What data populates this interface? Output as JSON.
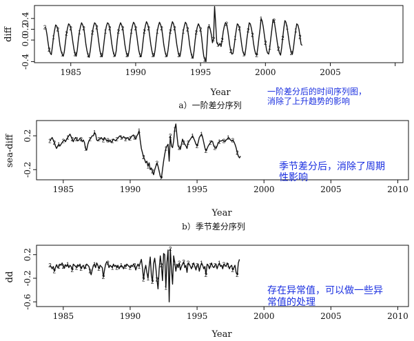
{
  "chart_data": [
    {
      "type": "line",
      "title": "",
      "xlabel": "Year",
      "ylabel": "diff",
      "caption": "a）一阶差分序列",
      "annotation": "一阶差分后的时间序列图，消除了上升趋势的影响",
      "annotation_lines": [
        "一阶差分后的时间序列图，",
        "消除了上升趋势的影响"
      ],
      "xlim": [
        1982.2,
        2010.6
      ],
      "ylim": [
        -0.42,
        0.64
      ],
      "xticks": [
        1985,
        1990,
        1995,
        2000,
        2005,
        2010
      ],
      "xtick_labels": [
        "1985",
        "1990",
        "1995",
        "2000",
        "2005",
        ""
      ],
      "yticks": [
        -0.4,
        0.0,
        0.2,
        0.4
      ],
      "ytick_labels": [
        "-0.4",
        "0.0",
        "0.2",
        "0.4"
      ],
      "start": 1983.0,
      "step": 0.08333,
      "labels_every": 4,
      "grid": false,
      "values": [
        0.24,
        0.22,
        0.1,
        -0.05,
        -0.18,
        -0.24,
        -0.27,
        -0.12,
        0.05,
        0.18,
        0.28,
        0.26,
        0.2,
        0.06,
        -0.1,
        -0.2,
        -0.26,
        -0.3,
        -0.22,
        -0.05,
        0.12,
        0.22,
        0.3,
        0.28,
        0.22,
        0.1,
        -0.05,
        -0.18,
        -0.26,
        -0.3,
        -0.18,
        0.0,
        0.15,
        0.25,
        0.32,
        0.28,
        0.22,
        0.08,
        -0.08,
        -0.2,
        -0.28,
        -0.32,
        -0.2,
        -0.02,
        0.14,
        0.25,
        0.32,
        0.3,
        0.24,
        0.1,
        -0.06,
        -0.2,
        -0.28,
        -0.31,
        -0.18,
        0.0,
        0.16,
        0.26,
        0.32,
        0.3,
        0.22,
        0.08,
        -0.08,
        -0.2,
        -0.27,
        -0.3,
        -0.2,
        0.0,
        0.16,
        0.26,
        0.32,
        0.28,
        0.22,
        0.08,
        -0.08,
        -0.2,
        -0.28,
        -0.3,
        -0.19,
        0.0,
        0.16,
        0.26,
        0.33,
        0.3,
        0.22,
        0.09,
        -0.07,
        -0.2,
        -0.28,
        -0.31,
        -0.19,
        0.0,
        0.16,
        0.27,
        0.34,
        0.3,
        0.22,
        0.08,
        -0.08,
        -0.2,
        -0.28,
        -0.3,
        -0.18,
        0.0,
        0.16,
        0.26,
        0.33,
        0.29,
        0.22,
        0.08,
        -0.08,
        -0.2,
        -0.28,
        -0.3,
        -0.18,
        0.0,
        0.16,
        0.26,
        0.34,
        0.3,
        0.22,
        0.08,
        -0.08,
        -0.2,
        -0.28,
        -0.3,
        -0.18,
        0.0,
        0.16,
        0.26,
        0.33,
        0.3,
        0.2,
        0.06,
        -0.1,
        -0.22,
        -0.3,
        -0.34,
        -0.2,
        0.0,
        0.14,
        0.24,
        0.3,
        0.26,
        0.2,
        0.05,
        -0.15,
        -0.3,
        -0.36,
        -0.4,
        -0.1,
        0.24,
        0.26,
        0.2,
        0.1,
        -0.05,
        0.02,
        0.62,
        0.3,
        -0.05,
        -0.08,
        -0.1,
        -0.06,
        -0.12,
        0.0,
        0.16,
        0.26,
        0.32,
        0.3,
        0.2,
        0.06,
        -0.1,
        -0.2,
        -0.26,
        -0.25,
        -0.12,
        0.04,
        0.18,
        0.3,
        0.28,
        0.22,
        0.08,
        -0.08,
        -0.2,
        -0.26,
        -0.28,
        -0.14,
        0.04,
        0.18,
        0.32,
        0.3,
        0.22,
        0.1,
        -0.06,
        -0.18,
        -0.26,
        -0.28,
        -0.14,
        0.04,
        0.2,
        0.4,
        0.35,
        0.24,
        0.1,
        -0.05,
        -0.18,
        -0.24,
        -0.26,
        -0.14,
        0.04,
        0.2,
        0.38,
        0.36,
        0.24,
        0.1,
        -0.05,
        -0.16,
        -0.24,
        -0.28,
        -0.14,
        0.04,
        0.22,
        0.36,
        0.33,
        0.24,
        0.1,
        -0.04,
        -0.16,
        -0.24,
        -0.26,
        -0.14,
        0.04,
        0.18,
        0.3,
        0.28,
        0.2,
        0.06,
        -0.08,
        -0.1
      ]
    },
    {
      "type": "line",
      "title": "",
      "xlabel": "Year",
      "ylabel": "sea-diff",
      "caption": "b）季节差分序列",
      "annotation": "季节差分后，消除了周期性影响",
      "annotation_lines": [
        "季节差分后，消除了周期",
        "性影响"
      ],
      "xlim": [
        1983.0,
        2010.8
      ],
      "ylim": [
        -0.32,
        0.38
      ],
      "xticks": [
        1985,
        1990,
        1995,
        2000,
        2005,
        2010
      ],
      "xtick_labels": [
        "1985",
        "1990",
        "1995",
        "2000",
        "2005",
        "2010"
      ],
      "yticks": [
        -0.2,
        0.2
      ],
      "ytick_labels": [
        "-0.2",
        "0.2"
      ],
      "start": 1984.0,
      "step": 0.08333,
      "labels_every": 4,
      "grid": false,
      "values": [
        0.14,
        0.16,
        0.18,
        0.15,
        0.12,
        0.08,
        0.05,
        0.08,
        0.1,
        0.08,
        0.1,
        0.12,
        0.14,
        0.15,
        0.13,
        0.16,
        0.18,
        0.2,
        0.22,
        0.19,
        0.16,
        0.13,
        0.16,
        0.18,
        0.16,
        0.14,
        0.15,
        0.17,
        0.16,
        0.13,
        0.15,
        0.12,
        0.05,
        0.03,
        0.1,
        0.14,
        0.16,
        0.18,
        0.2,
        0.2,
        0.24,
        0.22,
        0.15,
        0.14,
        0.16,
        0.16,
        0.18,
        0.16,
        0.15,
        0.18,
        0.16,
        0.14,
        0.15,
        0.13,
        0.15,
        0.12,
        0.14,
        0.16,
        0.15,
        0.14,
        0.16,
        0.17,
        0.19,
        0.2,
        0.18,
        0.17,
        0.19,
        0.18,
        0.16,
        0.17,
        0.18,
        0.15,
        0.17,
        0.19,
        0.2,
        0.21,
        0.18,
        0.16,
        0.2,
        0.22,
        0.26,
        0.15,
        0.05,
        0.0,
        -0.05,
        -0.08,
        -0.12,
        -0.1,
        -0.16,
        -0.12,
        -0.2,
        -0.18,
        -0.22,
        -0.26,
        -0.2,
        -0.16,
        -0.12,
        -0.16,
        -0.22,
        -0.28,
        -0.3,
        -0.2,
        -0.1,
        -0.02,
        0.05,
        0.08,
        0.1,
        -0.1,
        0.2,
        0.08,
        0.06,
        0.14,
        0.28,
        0.34,
        0.2,
        0.08,
        0.06,
        0.04,
        0.1,
        0.16,
        0.12,
        0.1,
        0.08,
        0.05,
        0.12,
        0.14,
        0.16,
        0.18,
        0.2,
        0.17,
        0.14,
        0.1,
        0.08,
        0.12,
        0.18,
        0.2,
        0.22,
        0.18,
        0.12,
        0.06,
        0.02,
        0.05,
        0.08,
        0.1,
        0.12,
        0.14,
        0.13,
        0.08,
        0.06,
        0.05,
        0.08,
        0.12,
        0.13,
        0.14,
        0.14,
        0.15,
        0.14,
        0.13,
        0.15,
        0.16,
        0.18,
        0.17,
        0.15,
        0.14,
        0.15,
        0.13,
        0.1,
        0.06,
        0.0,
        -0.04,
        -0.06,
        -0.04
      ]
    },
    {
      "type": "line",
      "title": "",
      "xlabel": "Year",
      "ylabel": "dd",
      "caption": "",
      "annotation": "存在异常值，可以做一些异常值的处理",
      "annotation_lines": [
        "存在异常值，可以做一些异",
        "常值的处理"
      ],
      "xlim": [
        1983.0,
        2010.8
      ],
      "ylim": [
        -0.68,
        0.36
      ],
      "xticks": [
        1985,
        1990,
        1995,
        2000,
        2005,
        2010
      ],
      "xtick_labels": [
        "1985",
        "1990",
        "1995",
        "2000",
        "2005",
        "2010"
      ],
      "yticks": [
        -0.6,
        -0.2,
        0.2
      ],
      "ytick_labels": [
        "-0.6",
        "-0.2",
        "0.2"
      ],
      "start": 1984.0,
      "step": 0.08333,
      "labels_every": 4,
      "grid": false,
      "values": [
        0.02,
        0.0,
        -0.04,
        0.0,
        -0.08,
        -0.02,
        0.03,
        -0.02,
        0.0,
        0.04,
        0.02,
        0.06,
        0.0,
        -0.03,
        0.03,
        0.0,
        0.04,
        -0.02,
        0.02,
        0.0,
        -0.06,
        0.04,
        0.02,
        0.0,
        -0.02,
        0.03,
        0.0,
        0.04,
        -0.04,
        0.0,
        0.02,
        -0.04,
        0.0,
        0.04,
        0.02,
        0.0,
        -0.08,
        -0.14,
        -0.06,
        0.02,
        0.04,
        -0.02,
        0.06,
        0.02,
        -0.04,
        0.02,
        0.0,
        -0.02,
        -0.18,
        -0.06,
        0.04,
        0.08,
        0.06,
        -0.02,
        0.02,
        0.0,
        -0.02,
        0.04,
        0.0,
        0.02,
        -0.02,
        0.02,
        -0.04,
        0.0,
        0.02,
        0.0,
        -0.04,
        0.02,
        0.0,
        0.04,
        0.02,
        0.0,
        -0.02,
        0.02,
        0.0,
        0.04,
        0.02,
        -0.06,
        0.0,
        0.04,
        0.0,
        0.06,
        0.12,
        -0.02,
        -0.22,
        -0.06,
        0.02,
        -0.1,
        -0.2,
        0.0,
        0.16,
        -0.14,
        -0.26,
        0.05,
        0.14,
        -0.02,
        -0.22,
        -0.38,
        -0.04,
        0.18,
        0.02,
        -0.24,
        0.22,
        0.2,
        -0.36,
        0.08,
        0.28,
        -0.6,
        0.3,
        -0.04,
        -0.3,
        0.18,
        0.06,
        -0.08,
        0.04,
        -0.02,
        0.06,
        -0.06,
        0.0,
        0.04,
        0.08,
        -0.02,
        0.02,
        -0.1,
        0.06,
        0.04,
        0.0,
        -0.04,
        0.02,
        0.06,
        0.0,
        -0.06,
        0.02,
        0.04,
        -0.08,
        0.0,
        0.06,
        0.02,
        -0.04,
        0.0,
        -0.14,
        0.04,
        0.02,
        -0.04,
        0.02,
        0.06,
        0.0,
        -0.02,
        0.02,
        0.04,
        -0.04,
        0.02,
        0.06,
        0.0,
        0.02,
        -0.04,
        0.04,
        0.02,
        0.0,
        0.06,
        0.02,
        -0.04,
        0.0,
        0.02,
        -0.06,
        -0.02,
        0.02,
        -0.1,
        -0.14,
        0.06,
        0.12
      ]
    }
  ]
}
